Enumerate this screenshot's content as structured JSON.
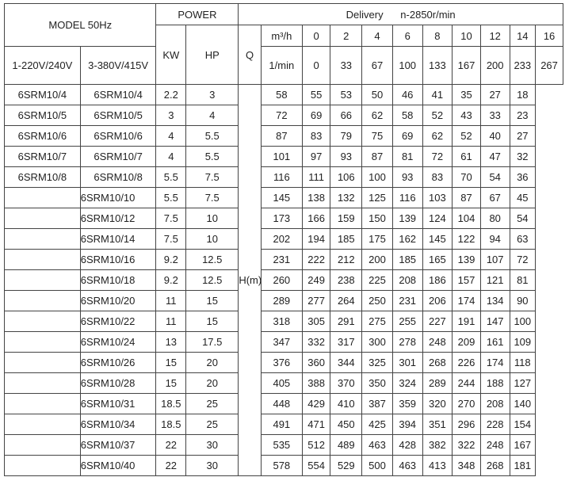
{
  "header": {
    "model": "MODEL 50Hz",
    "power": "POWER",
    "delivery": "Delivery",
    "speed": "n-2850r/min",
    "kw": "KW",
    "hp": "HP",
    "q": "Q",
    "unit_m3h": "m³/h",
    "unit_lmin": "1/min",
    "col_single_phase": "1-220V/240V",
    "col_three_phase": "3-380V/415V",
    "head": "H(m)"
  },
  "flow_m3h": [
    "0",
    "2",
    "4",
    "6",
    "8",
    "10",
    "12",
    "14",
    "16"
  ],
  "flow_lmin": [
    "0",
    "33",
    "67",
    "100",
    "133",
    "167",
    "200",
    "233",
    "267"
  ],
  "rows": [
    {
      "m1": "6SRM10/4",
      "m3": "6SRM10/4",
      "kw": "2.2",
      "hp": "3",
      "h": [
        "58",
        "55",
        "53",
        "50",
        "46",
        "41",
        "35",
        "27",
        "18"
      ]
    },
    {
      "m1": "6SRM10/5",
      "m3": "6SRM10/5",
      "kw": "3",
      "hp": "4",
      "h": [
        "72",
        "69",
        "66",
        "62",
        "58",
        "52",
        "43",
        "33",
        "23"
      ]
    },
    {
      "m1": "6SRM10/6",
      "m3": "6SRM10/6",
      "kw": "4",
      "hp": "5.5",
      "h": [
        "87",
        "83",
        "79",
        "75",
        "69",
        "62",
        "52",
        "40",
        "27"
      ]
    },
    {
      "m1": "6SRM10/7",
      "m3": "6SRM10/7",
      "kw": "4",
      "hp": "5.5",
      "h": [
        "101",
        "97",
        "93",
        "87",
        "81",
        "72",
        "61",
        "47",
        "32"
      ]
    },
    {
      "m1": "6SRM10/8",
      "m3": "6SRM10/8",
      "kw": "5.5",
      "hp": "7.5",
      "h": [
        "116",
        "111",
        "106",
        "100",
        "93",
        "83",
        "70",
        "54",
        "36"
      ]
    },
    {
      "m1": "",
      "m3": "6SRM10/10",
      "kw": "5.5",
      "hp": "7.5",
      "h": [
        "145",
        "138",
        "132",
        "125",
        "116",
        "103",
        "87",
        "67",
        "45"
      ]
    },
    {
      "m1": "",
      "m3": "6SRM10/12",
      "kw": "7.5",
      "hp": "10",
      "h": [
        "173",
        "166",
        "159",
        "150",
        "139",
        "124",
        "104",
        "80",
        "54"
      ]
    },
    {
      "m1": "",
      "m3": "6SRM10/14",
      "kw": "7.5",
      "hp": "10",
      "h": [
        "202",
        "194",
        "185",
        "175",
        "162",
        "145",
        "122",
        "94",
        "63"
      ]
    },
    {
      "m1": "",
      "m3": "6SRM10/16",
      "kw": "9.2",
      "hp": "12.5",
      "h": [
        "231",
        "222",
        "212",
        "200",
        "185",
        "165",
        "139",
        "107",
        "72"
      ]
    },
    {
      "m1": "",
      "m3": "6SRM10/18",
      "kw": "9.2",
      "hp": "12.5",
      "h": [
        "260",
        "249",
        "238",
        "225",
        "208",
        "186",
        "157",
        "121",
        "81"
      ]
    },
    {
      "m1": "",
      "m3": "6SRM10/20",
      "kw": "11",
      "hp": "15",
      "h": [
        "289",
        "277",
        "264",
        "250",
        "231",
        "206",
        "174",
        "134",
        "90"
      ]
    },
    {
      "m1": "",
      "m3": "6SRM10/22",
      "kw": "11",
      "hp": "15",
      "h": [
        "318",
        "305",
        "291",
        "275",
        "255",
        "227",
        "191",
        "147",
        "100"
      ]
    },
    {
      "m1": "",
      "m3": "6SRM10/24",
      "kw": "13",
      "hp": "17.5",
      "h": [
        "347",
        "332",
        "317",
        "300",
        "278",
        "248",
        "209",
        "161",
        "109"
      ]
    },
    {
      "m1": "",
      "m3": "6SRM10/26",
      "kw": "15",
      "hp": "20",
      "h": [
        "376",
        "360",
        "344",
        "325",
        "301",
        "268",
        "226",
        "174",
        "118"
      ]
    },
    {
      "m1": "",
      "m3": "6SRM10/28",
      "kw": "15",
      "hp": "20",
      "h": [
        "405",
        "388",
        "370",
        "350",
        "324",
        "289",
        "244",
        "188",
        "127"
      ]
    },
    {
      "m1": "",
      "m3": "6SRM10/31",
      "kw": "18.5",
      "hp": "25",
      "h": [
        "448",
        "429",
        "410",
        "387",
        "359",
        "320",
        "270",
        "208",
        "140"
      ]
    },
    {
      "m1": "",
      "m3": "6SRM10/34",
      "kw": "18.5",
      "hp": "25",
      "h": [
        "491",
        "471",
        "450",
        "425",
        "394",
        "351",
        "296",
        "228",
        "154"
      ]
    },
    {
      "m1": "",
      "m3": "6SRM10/37",
      "kw": "22",
      "hp": "30",
      "h": [
        "535",
        "512",
        "489",
        "463",
        "428",
        "382",
        "322",
        "248",
        "167"
      ]
    },
    {
      "m1": "",
      "m3": "6SRM10/40",
      "kw": "22",
      "hp": "30",
      "h": [
        "578",
        "554",
        "529",
        "500",
        "463",
        "413",
        "348",
        "268",
        "181"
      ]
    }
  ]
}
